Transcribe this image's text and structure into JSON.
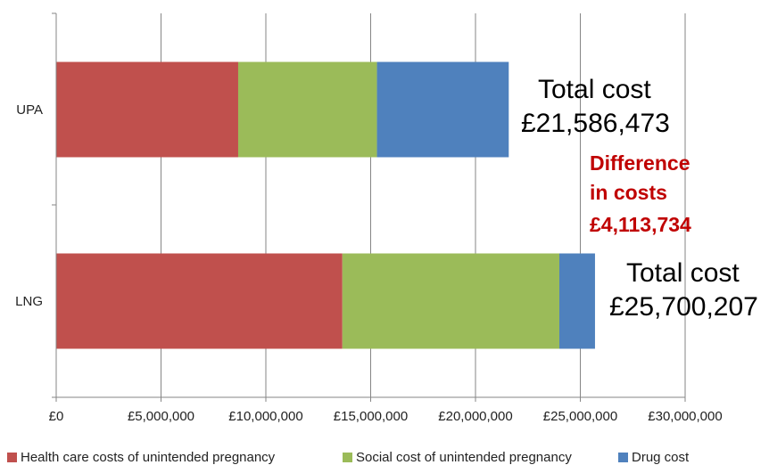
{
  "chart_data": {
    "type": "bar",
    "orientation": "horizontal",
    "stacked": true,
    "categories": [
      "UPA",
      "LNG"
    ],
    "series": [
      {
        "name": "Health care costs of unintended pregnancy",
        "color": "#c0504d",
        "values": [
          8680000,
          13650000
        ]
      },
      {
        "name": "Social cost of unintended pregnancy",
        "color": "#9bbb59",
        "values": [
          6620000,
          10350000
        ]
      },
      {
        "name": "Drug cost",
        "color": "#4f81bd",
        "values": [
          6286473,
          1700207
        ]
      }
    ],
    "xlim": [
      0,
      30000000
    ],
    "xticks": [
      0,
      5000000,
      10000000,
      15000000,
      20000000,
      25000000,
      30000000
    ],
    "xtick_labels": [
      "£0",
      "£5,000,000",
      "£10,000,000",
      "£15,000,000",
      "£20,000,000",
      "£25,000,000",
      "£30,000,000"
    ],
    "grid": "vertical",
    "legend_position": "bottom",
    "annotations": {
      "upa_total": [
        "Total cost",
        "£21,586,473"
      ],
      "lng_total": [
        "Total cost",
        "£25,700,207"
      ],
      "difference": [
        "Difference",
        "in costs",
        "£4,113,734"
      ],
      "difference_color": "#c00000"
    }
  }
}
